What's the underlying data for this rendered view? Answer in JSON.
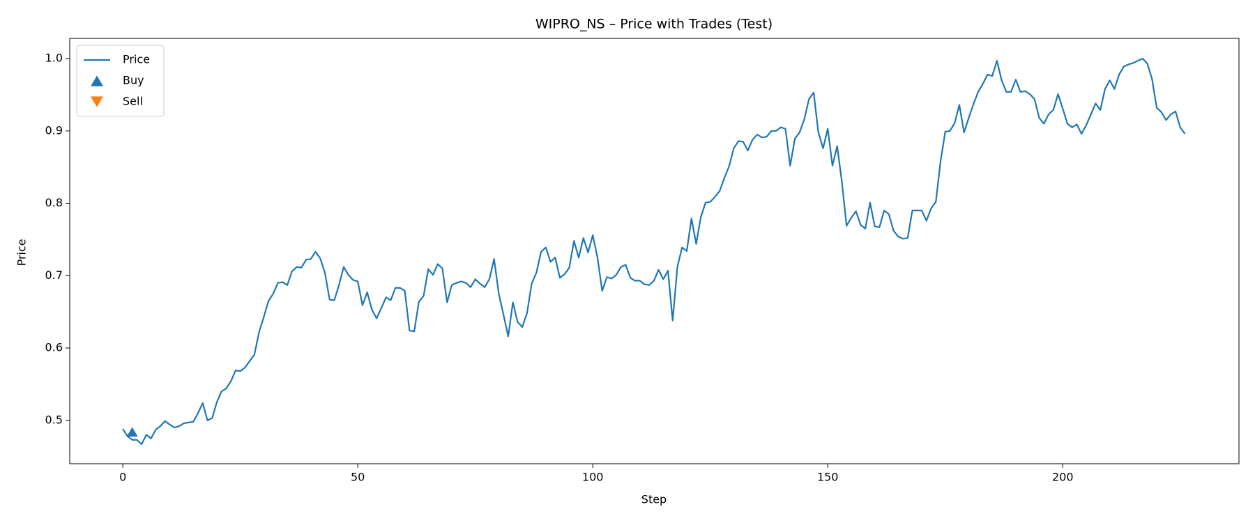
{
  "chart_data": {
    "type": "line",
    "title": "WIPRO_NS – Price with Trades (Test)",
    "x_label": "Step",
    "y_label": "Price",
    "xlim": [
      -11.3,
      237.5
    ],
    "ylim": [
      0.44,
      1.028
    ],
    "xticks": [
      0,
      50,
      100,
      150,
      200
    ],
    "yticks": [
      0.5,
      0.6,
      0.7,
      0.8,
      0.9,
      {
        "value": 1,
        "label": "1.0"
      }
    ],
    "legend": "upper left",
    "series": [
      {
        "name": "Price",
        "color": "#1f77b4",
        "x": [
          0,
          1,
          2,
          3,
          4,
          5,
          6,
          7,
          8,
          9,
          10,
          11,
          12,
          13,
          14,
          15,
          16,
          17,
          18,
          19,
          20,
          21,
          22,
          23,
          24,
          25,
          26,
          27,
          28,
          29,
          30,
          31,
          32,
          33,
          34,
          35,
          36,
          37,
          38,
          39,
          40,
          41,
          42,
          43,
          44,
          45,
          46,
          47,
          48,
          49,
          50,
          51,
          52,
          53,
          54,
          55,
          56,
          57,
          58,
          59,
          60,
          61,
          62,
          63,
          64,
          65,
          66,
          67,
          68,
          69,
          70,
          71,
          72,
          73,
          74,
          75,
          76,
          77,
          78,
          79,
          80,
          81,
          82,
          83,
          84,
          85,
          86,
          87,
          88,
          89,
          90,
          91,
          92,
          93,
          94,
          95,
          96,
          97,
          98,
          99,
          100,
          101,
          102,
          103,
          104,
          105,
          106,
          107,
          108,
          109,
          110,
          111,
          112,
          113,
          114,
          115,
          116,
          117,
          118,
          119,
          120,
          121,
          122,
          123,
          124,
          125,
          126,
          127,
          128,
          129,
          130,
          131,
          132,
          133,
          134,
          135,
          136,
          137,
          138,
          139,
          140,
          141,
          142,
          143,
          144,
          145,
          146,
          147,
          148,
          149,
          150,
          151,
          152,
          153,
          154,
          155,
          156,
          157,
          158,
          159,
          160,
          161,
          162,
          163,
          164,
          165,
          166,
          167,
          168,
          169,
          170,
          171,
          172,
          173,
          174,
          175,
          176,
          177,
          178,
          179,
          180,
          181,
          182,
          183,
          184,
          185,
          186,
          187,
          188,
          189,
          190,
          191,
          192,
          193,
          194,
          195,
          196,
          197,
          198,
          199,
          200,
          201,
          202,
          203,
          204,
          205,
          206,
          207,
          208,
          209,
          210,
          211,
          212,
          213,
          214,
          215,
          216,
          217,
          218,
          219,
          220,
          221,
          222,
          223,
          224,
          225,
          226
        ],
        "values": [
          0.488,
          0.478,
          0.473,
          0.473,
          0.467,
          0.48,
          0.475,
          0.487,
          0.492,
          0.499,
          0.494,
          0.49,
          0.492,
          0.496,
          0.497,
          0.498,
          0.51,
          0.524,
          0.5,
          0.503,
          0.525,
          0.54,
          0.544,
          0.554,
          0.569,
          0.568,
          0.573,
          0.582,
          0.591,
          0.622,
          0.643,
          0.665,
          0.675,
          0.69,
          0.691,
          0.687,
          0.706,
          0.712,
          0.711,
          0.722,
          0.723,
          0.733,
          0.724,
          0.704,
          0.667,
          0.666,
          0.687,
          0.712,
          0.701,
          0.694,
          0.692,
          0.659,
          0.677,
          0.653,
          0.641,
          0.655,
          0.67,
          0.666,
          0.683,
          0.683,
          0.679,
          0.624,
          0.623,
          0.664,
          0.672,
          0.709,
          0.701,
          0.716,
          0.71,
          0.663,
          0.687,
          0.69,
          0.692,
          0.69,
          0.684,
          0.695,
          0.689,
          0.684,
          0.695,
          0.723,
          0.675,
          0.646,
          0.616,
          0.663,
          0.636,
          0.629,
          0.648,
          0.689,
          0.704,
          0.733,
          0.739,
          0.719,
          0.725,
          0.697,
          0.702,
          0.711,
          0.748,
          0.725,
          0.752,
          0.732,
          0.756,
          0.725,
          0.679,
          0.698,
          0.696,
          0.701,
          0.712,
          0.715,
          0.697,
          0.693,
          0.693,
          0.688,
          0.687,
          0.693,
          0.708,
          0.695,
          0.707,
          0.638,
          0.712,
          0.739,
          0.734,
          0.779,
          0.744,
          0.781,
          0.801,
          0.802,
          0.809,
          0.817,
          0.835,
          0.851,
          0.876,
          0.886,
          0.885,
          0.873,
          0.888,
          0.895,
          0.891,
          0.892,
          0.9,
          0.9,
          0.905,
          0.903,
          0.852,
          0.889,
          0.898,
          0.916,
          0.944,
          0.953,
          0.898,
          0.876,
          0.903,
          0.852,
          0.879,
          0.83,
          0.769,
          0.78,
          0.789,
          0.77,
          0.765,
          0.801,
          0.768,
          0.767,
          0.79,
          0.785,
          0.762,
          0.754,
          0.751,
          0.752,
          0.79,
          0.79,
          0.79,
          0.776,
          0.793,
          0.802,
          0.858,
          0.899,
          0.9,
          0.911,
          0.936,
          0.898,
          0.918,
          0.937,
          0.954,
          0.965,
          0.978,
          0.976,
          0.997,
          0.97,
          0.954,
          0.954,
          0.971,
          0.954,
          0.955,
          0.951,
          0.944,
          0.918,
          0.91,
          0.923,
          0.929,
          0.951,
          0.931,
          0.91,
          0.905,
          0.909,
          0.896,
          0.908,
          0.923,
          0.938,
          0.929,
          0.958,
          0.97,
          0.958,
          0.978,
          0.989,
          0.992,
          0.994,
          0.997,
          1.0,
          0.993,
          0.972,
          0.932,
          0.926,
          0.915,
          0.923,
          0.927,
          0.905,
          0.896
        ]
      },
      {
        "name": "Buy",
        "color": "#1f77b4",
        "marker": "^",
        "x": [
          2
        ],
        "values": [
          0.484
        ]
      },
      {
        "name": "Sell",
        "color": "#ff7f0e",
        "marker": "v",
        "x": [],
        "values": []
      }
    ]
  }
}
